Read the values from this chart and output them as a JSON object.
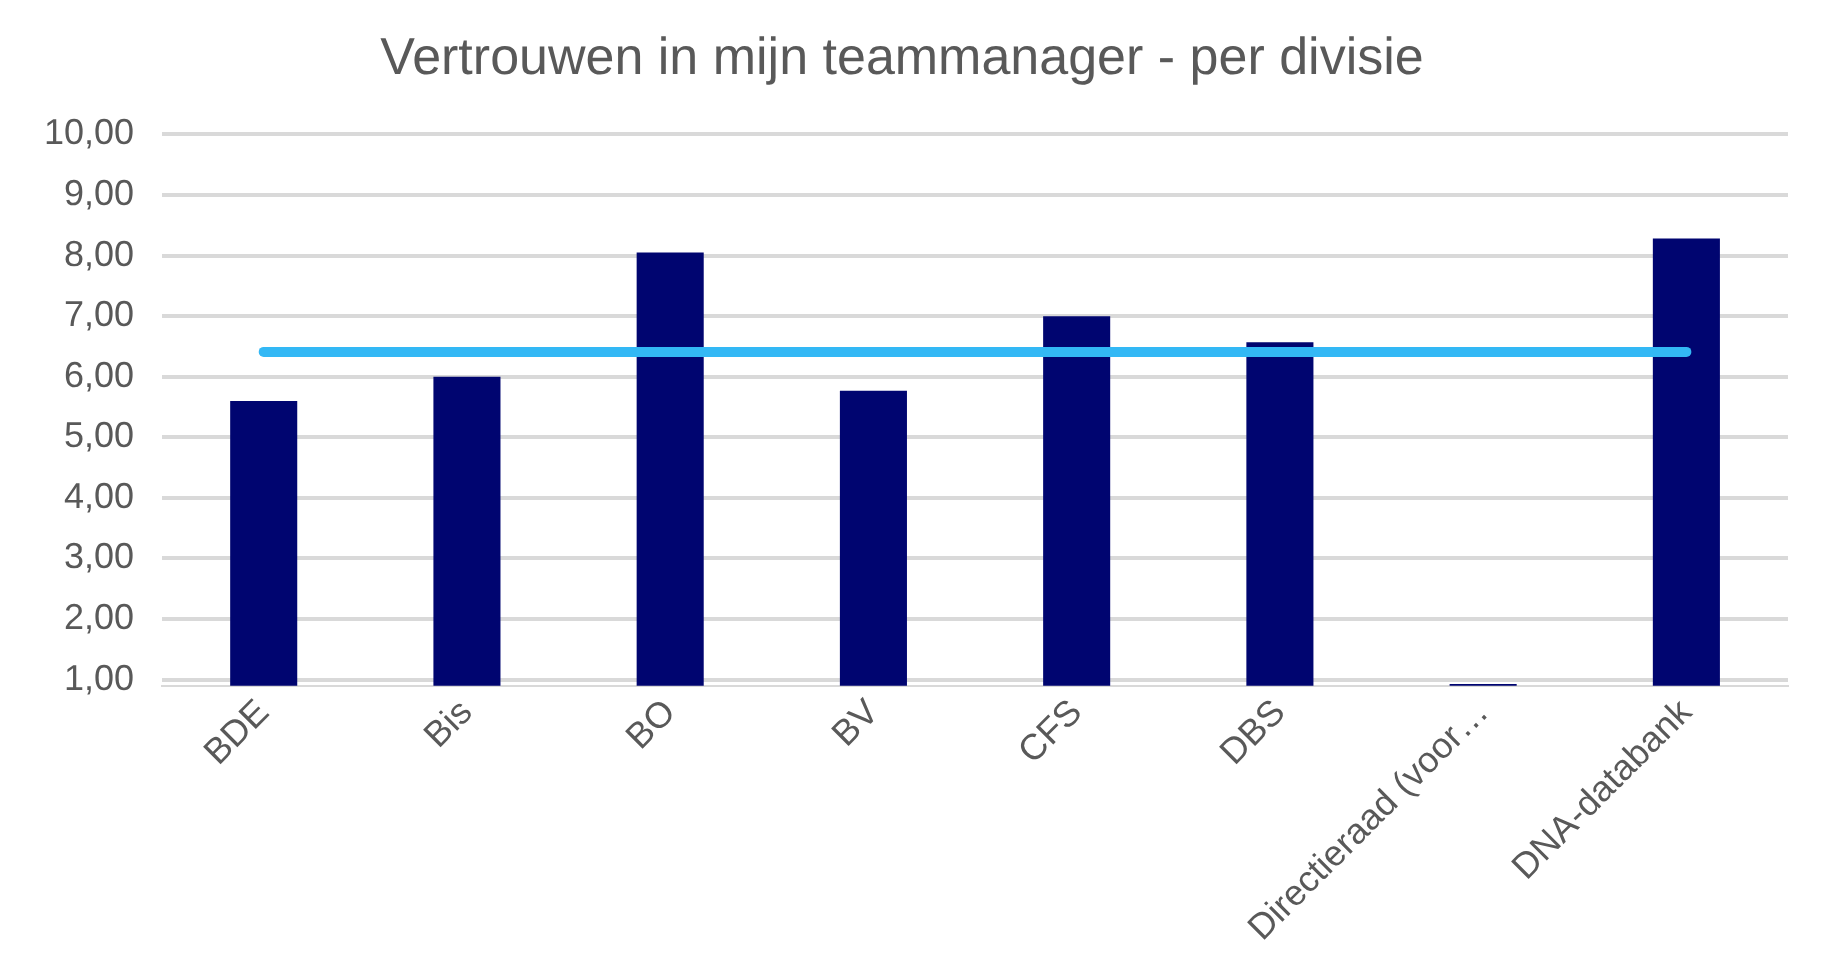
{
  "chart_data": {
    "type": "bar",
    "title": "Vertrouwen in mijn teammanager - per divisie",
    "categories": [
      "BDE",
      "Bis",
      "BO",
      "BV",
      "CFS",
      "DBS",
      "Directieraad (voor…",
      "DNA-databank"
    ],
    "series": [
      {
        "color": "#000570",
        "values": [
          5.6,
          6.0,
          8.05,
          5.77,
          7.0,
          6.57,
          0.93,
          8.28
        ]
      },
      {
        "type": "line",
        "color": "#33b8f5",
        "values": [
          6.41,
          6.41,
          6.41,
          6.41,
          6.41,
          6.41,
          6.41,
          6.41
        ]
      }
    ],
    "ylim": [
      0.9,
      10
    ],
    "yticks": [
      {
        "value": 1,
        "label": "1,00"
      },
      {
        "value": 2,
        "label": "2,00"
      },
      {
        "value": 3,
        "label": "3,00"
      },
      {
        "value": 4,
        "label": "4,00"
      },
      {
        "value": 5,
        "label": "5,00"
      },
      {
        "value": 6,
        "label": "6,00"
      },
      {
        "value": 7,
        "label": "7,00"
      },
      {
        "value": 8,
        "label": "8,00"
      },
      {
        "value": 9,
        "label": "9,00"
      },
      {
        "value": 10,
        "label": "10,00"
      }
    ],
    "grid": "y",
    "legend": false,
    "marker": "none"
  }
}
